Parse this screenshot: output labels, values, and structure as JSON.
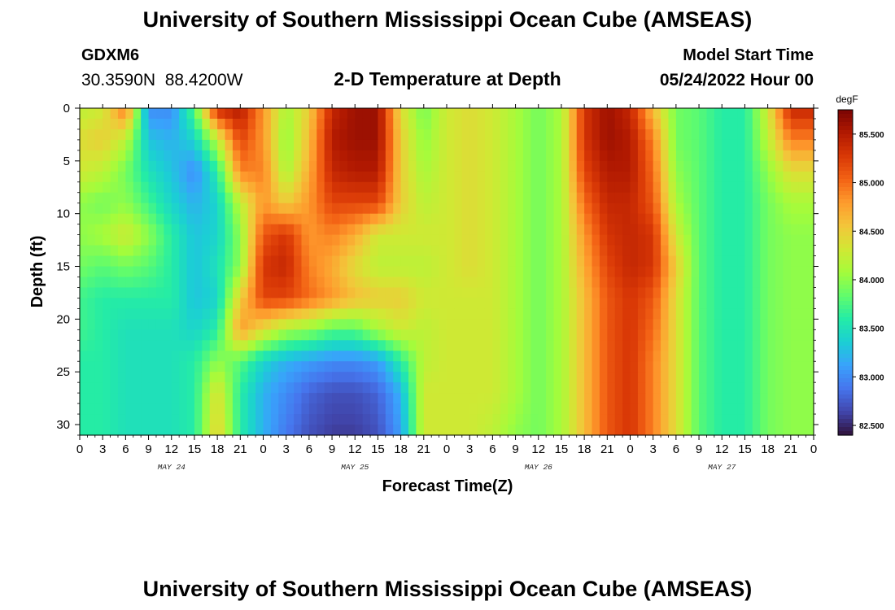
{
  "header": {
    "title": "University of Southern Mississippi Ocean Cube (AMSEAS)",
    "station": "GDXM6",
    "coords": "30.3590N  88.4200W",
    "subtitle": "2-D Temperature at Depth",
    "start_label": "Model Start Time",
    "start_value": "05/24/2022 Hour 00"
  },
  "footer": {
    "title": "University of Southern Mississippi Ocean Cube (AMSEAS)"
  },
  "colors": {
    "background": "#ffffff",
    "colormap": [
      "#30123b",
      "#4145ab",
      "#4675ed",
      "#39a2fc",
      "#1bcfd4",
      "#24eca6",
      "#61fc6c",
      "#a4fc3b",
      "#d1e834",
      "#f3c63a",
      "#fe9b2d",
      "#f36315",
      "#d93806",
      "#b11901",
      "#7a0403"
    ]
  },
  "chart_data": {
    "type": "heatmap",
    "title": "2-D Temperature at Depth",
    "xlabel": "Forecast Time(Z)",
    "ylabel": "Depth (ft)",
    "x_tick_labels": [
      "0",
      "3",
      "6",
      "9",
      "12",
      "15",
      "18",
      "21",
      "0",
      "3",
      "6",
      "9",
      "12",
      "15",
      "18",
      "21",
      "0",
      "3",
      "6",
      "9",
      "12",
      "15",
      "18",
      "21",
      "0",
      "3",
      "6",
      "9",
      "12",
      "15",
      "18",
      "21",
      "0"
    ],
    "day_labels": [
      "MAY 24",
      "MAY 25",
      "MAY 26",
      "MAY 27"
    ],
    "xlim_hours": [
      0,
      96
    ],
    "y_tick_labels": [
      "0",
      "5",
      "10",
      "15",
      "20",
      "25",
      "30"
    ],
    "y_ticks": [
      0,
      5,
      10,
      15,
      20,
      25,
      30
    ],
    "ylim": [
      0,
      31
    ],
    "y_inverted": true,
    "colorbar": {
      "unit": "degF",
      "min": 82.4,
      "max": 85.75,
      "tick_values": [
        82.5,
        83.0,
        83.5,
        84.0,
        84.5,
        85.0,
        85.5
      ],
      "tick_labels": [
        "82.500",
        "83.000",
        "83.500",
        "84.000",
        "84.500",
        "85.000",
        "85.500"
      ]
    },
    "grid": false,
    "time_hours": [
      0,
      3,
      6,
      9,
      12,
      15,
      18,
      21,
      24,
      27,
      30,
      33,
      36,
      39,
      42,
      45,
      48,
      51,
      54,
      57,
      60,
      63,
      66,
      69,
      72,
      75,
      78,
      81,
      84,
      87,
      90,
      93,
      96
    ],
    "depth_ft": [
      0,
      3,
      6,
      9,
      12,
      15,
      18,
      21,
      24,
      27,
      31
    ],
    "values_degF": [
      [
        84.2,
        84.3,
        85.0,
        83.0,
        83.0,
        83.8,
        85.4,
        85.5,
        84.8,
        84.1,
        84.5,
        85.4,
        85.6,
        85.6,
        84.4,
        83.9,
        84.3,
        84.4,
        84.3,
        84.1,
        83.9,
        84.1,
        85.3,
        85.6,
        85.4,
        84.6,
        83.9,
        83.8,
        83.6,
        83.6,
        84.3,
        85.4,
        85.4
      ],
      [
        84.4,
        84.5,
        84.2,
        83.3,
        83.2,
        83.4,
        84.2,
        85.2,
        84.8,
        84.0,
        84.6,
        85.5,
        85.6,
        85.6,
        84.5,
        84.0,
        84.3,
        84.4,
        84.3,
        84.1,
        83.9,
        84.1,
        85.3,
        85.6,
        85.5,
        84.9,
        83.9,
        83.8,
        83.6,
        83.6,
        84.2,
        84.9,
        84.9
      ],
      [
        84.3,
        84.2,
        83.9,
        83.5,
        83.3,
        83.0,
        83.6,
        84.9,
        84.9,
        84.1,
        84.7,
        85.4,
        85.5,
        85.5,
        84.5,
        84.1,
        84.3,
        84.4,
        84.3,
        84.1,
        83.9,
        84.1,
        85.2,
        85.5,
        85.5,
        85.0,
        84.0,
        83.8,
        83.6,
        83.6,
        84.0,
        84.4,
        84.4
      ],
      [
        84.0,
        83.9,
        84.0,
        83.7,
        83.4,
        83.2,
        83.4,
        84.2,
        84.8,
        84.5,
        84.8,
        85.2,
        85.2,
        85.2,
        84.5,
        84.2,
        84.3,
        84.4,
        84.3,
        84.1,
        83.9,
        84.1,
        85.0,
        85.4,
        85.4,
        85.1,
        84.1,
        83.8,
        83.6,
        83.6,
        83.9,
        84.1,
        84.1
      ],
      [
        84.0,
        84.1,
        84.3,
        84.0,
        83.6,
        83.3,
        83.4,
        84.0,
        85.1,
        85.3,
        84.8,
        84.9,
        84.7,
        84.3,
        84.3,
        84.3,
        84.3,
        84.4,
        84.3,
        84.1,
        83.9,
        84.1,
        84.8,
        85.3,
        85.4,
        85.3,
        84.3,
        83.8,
        83.6,
        83.6,
        83.9,
        84.0,
        84.0
      ],
      [
        83.9,
        83.8,
        83.9,
        83.8,
        83.6,
        83.3,
        83.5,
        84.0,
        85.3,
        85.4,
        84.9,
        84.7,
        84.4,
        84.2,
        84.2,
        84.2,
        84.3,
        84.4,
        84.3,
        84.1,
        83.9,
        84.1,
        84.7,
        85.2,
        85.4,
        85.3,
        84.5,
        83.8,
        83.6,
        83.6,
        83.9,
        84.0,
        84.0
      ],
      [
        83.7,
        83.6,
        83.6,
        83.6,
        83.6,
        83.3,
        83.4,
        84.5,
        85.2,
        85.2,
        85.0,
        84.8,
        84.6,
        84.5,
        84.5,
        84.3,
        84.3,
        84.3,
        84.3,
        84.1,
        83.9,
        84.1,
        84.6,
        85.1,
        85.3,
        85.1,
        84.4,
        83.8,
        83.6,
        83.6,
        83.9,
        84.0,
        84.0
      ],
      [
        83.7,
        83.6,
        83.5,
        83.5,
        83.5,
        83.4,
        83.6,
        84.8,
        84.4,
        84.1,
        84.0,
        83.8,
        83.8,
        84.1,
        84.3,
        84.2,
        84.3,
        84.3,
        84.3,
        84.1,
        83.9,
        84.1,
        84.6,
        85.1,
        85.3,
        85.0,
        84.4,
        83.8,
        83.6,
        83.6,
        83.9,
        84.0,
        84.0
      ],
      [
        83.6,
        83.6,
        83.5,
        83.5,
        83.5,
        83.6,
        84.0,
        83.8,
        83.4,
        83.2,
        83.1,
        83.0,
        83.0,
        83.1,
        83.6,
        84.2,
        84.3,
        84.3,
        84.3,
        84.1,
        83.9,
        84.1,
        84.6,
        85.1,
        85.3,
        84.9,
        84.4,
        83.8,
        83.6,
        83.6,
        83.9,
        84.0,
        84.0
      ],
      [
        83.6,
        83.6,
        83.5,
        83.5,
        83.5,
        83.6,
        84.4,
        83.6,
        83.2,
        83.0,
        82.8,
        82.7,
        82.7,
        82.8,
        83.2,
        84.3,
        84.3,
        84.3,
        84.3,
        84.1,
        83.9,
        84.1,
        84.6,
        85.1,
        85.3,
        84.9,
        84.4,
        83.8,
        83.6,
        83.6,
        83.9,
        84.0,
        84.0
      ],
      [
        83.6,
        83.6,
        83.5,
        83.5,
        83.5,
        83.6,
        84.5,
        83.6,
        83.2,
        82.9,
        82.7,
        82.6,
        82.6,
        82.7,
        83.1,
        84.3,
        84.3,
        84.3,
        84.2,
        84.0,
        83.9,
        84.1,
        84.6,
        85.1,
        85.3,
        84.9,
        84.4,
        83.8,
        83.6,
        83.6,
        83.9,
        84.0,
        84.0
      ]
    ]
  }
}
